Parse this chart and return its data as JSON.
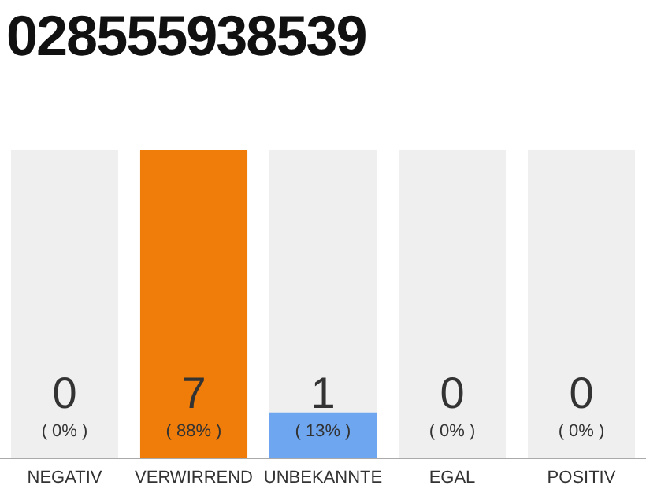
{
  "chart_data": {
    "type": "bar",
    "title": "028555938539",
    "categories": [
      "NEGATIV",
      "VERWIRREND",
      "UNBEKANNTE",
      "EGAL",
      "POSITIV"
    ],
    "values": [
      0,
      88,
      13,
      0,
      0
    ],
    "colors": [
      "#f07d0a",
      "#f07d0a",
      "#6ea6f0",
      "#f07d0a",
      "#f07d0a"
    ],
    "value_labels": [
      "( 0% )",
      "( 88% )",
      "( 13% )",
      "( 0% )",
      "( 0% )"
    ],
    "annotations": [
      "0",
      "7",
      "1",
      "0",
      "0"
    ],
    "tick_labels": "x",
    "grid": false,
    "legend": false
  }
}
